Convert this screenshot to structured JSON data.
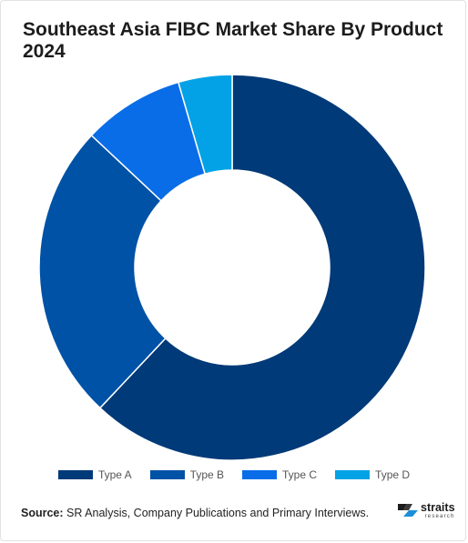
{
  "title": "Southeast Asia FIBC Market Share By Product 2024",
  "chart_data": {
    "type": "pie",
    "title": "Southeast Asia FIBC Market Share By Product 2024",
    "categories": [
      "Type A",
      "Type B",
      "Type C",
      "Type D"
    ],
    "values": [
      62,
      25,
      8.5,
      4.5
    ],
    "colors": [
      "#003a78",
      "#0052a6",
      "#0a6de8",
      "#03a2e6"
    ],
    "donut": true,
    "legend_position": "bottom-center"
  },
  "source": {
    "label": "Source:",
    "text": "SR Analysis, Company Publications and Primary Interviews."
  },
  "logo": {
    "word": "straits",
    "sub": "research",
    "icon": "straits-logo-icon"
  }
}
